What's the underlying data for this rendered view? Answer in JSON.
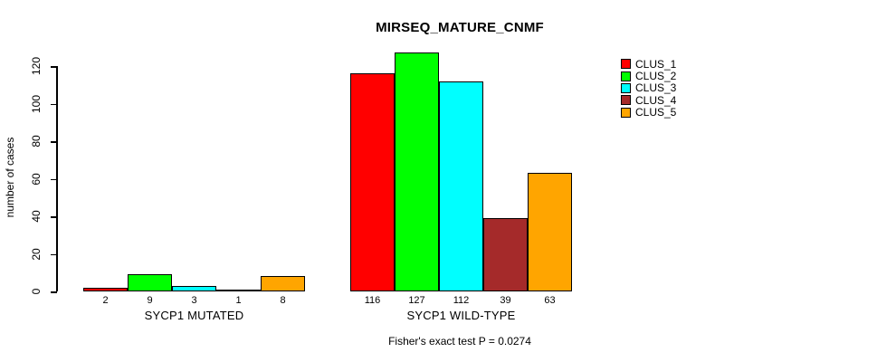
{
  "chart_data": {
    "type": "bar",
    "title": "MIRSEQ_MATURE_CNMF",
    "ylabel": "number of cases",
    "xlabel": "",
    "caption": "Fisher's exact test P = 0.0274",
    "yticks": [
      0,
      20,
      40,
      60,
      80,
      100,
      120
    ],
    "ylim": [
      0,
      127
    ],
    "grid": false,
    "legend_position": "top-right",
    "groups": [
      {
        "label": "SYCP1 MUTATED",
        "values": [
          2,
          9,
          3,
          1,
          8
        ]
      },
      {
        "label": "SYCP1 WILD-TYPE",
        "values": [
          116,
          127,
          112,
          39,
          63
        ]
      }
    ],
    "series": [
      {
        "name": "CLUS_1",
        "color": "#ff0000",
        "values": [
          2,
          116
        ]
      },
      {
        "name": "CLUS_2",
        "color": "#00ff00",
        "values": [
          9,
          127
        ]
      },
      {
        "name": "CLUS_3",
        "color": "#00ffff",
        "values": [
          3,
          112
        ]
      },
      {
        "name": "CLUS_4",
        "color": "#a52a2a",
        "values": [
          1,
          39
        ]
      },
      {
        "name": "CLUS_5",
        "color": "#ffa500",
        "values": [
          8,
          63
        ]
      }
    ],
    "axis_color": "#000000",
    "background_color": "#ffffff"
  }
}
